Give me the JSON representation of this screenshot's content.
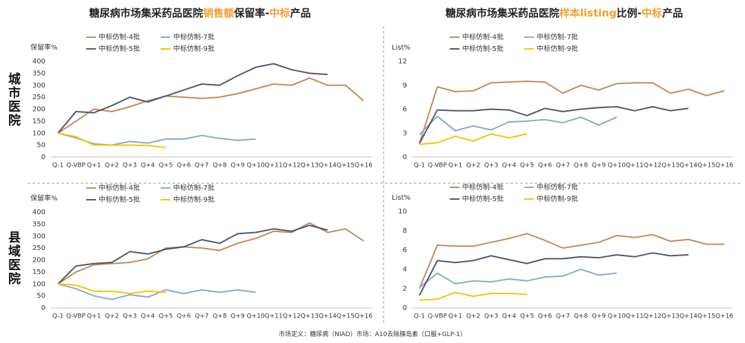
{
  "headers": [
    {
      "parts": [
        "糖尿病市场集采药品医院",
        "销售额",
        "保留率-",
        "中标",
        "产品"
      ]
    },
    {
      "parts": [
        "糖尿病市场集采药品医院",
        "样本listing",
        "比例-",
        "中标",
        "产品"
      ]
    }
  ],
  "row_labels": [
    "城市医院",
    "县域医院"
  ],
  "footnote": "市场定义：糖尿病（NIAD）市场：A10去除胰岛素（口服+GLP-1）",
  "chart_data": [
    {
      "type": "line",
      "y_label": "保留率%",
      "categories": [
        "Q-1",
        "Q-VBP",
        "Q+1",
        "Q+2",
        "Q+3",
        "Q+4",
        "Q+5",
        "Q+6",
        "Q+7",
        "Q+8",
        "Q+9",
        "Q+10",
        "Q+11",
        "Q+12",
        "Q+13",
        "Q+14",
        "Q+15",
        "Q+16"
      ],
      "ylim": [
        0,
        400
      ],
      "yticks": [
        0,
        50,
        100,
        150,
        200,
        250,
        300,
        350,
        400
      ],
      "grid": false,
      "series": [
        {
          "name": "中标仿制-4批",
          "color": "#c08a5b",
          "values": [
            100,
            150,
            200,
            190,
            210,
            235,
            255,
            250,
            245,
            250,
            265,
            285,
            305,
            300,
            330,
            300,
            300,
            235
          ]
        },
        {
          "name": "中标仿制-7批",
          "color": "#86a9cf",
          "values": [
            100,
            80,
            55,
            50,
            65,
            58,
            75,
            75,
            90,
            78,
            70,
            75,
            null,
            null,
            null,
            null,
            null,
            null
          ]
        },
        {
          "name": "中标仿制-5批",
          "color": "#4b5869",
          "values": [
            100,
            190,
            185,
            215,
            250,
            230,
            255,
            280,
            305,
            300,
            340,
            375,
            390,
            365,
            350,
            345,
            null,
            null
          ]
        },
        {
          "name": "中标仿制-9批",
          "color": "#f5c400",
          "values": [
            100,
            85,
            50,
            50,
            50,
            48,
            40,
            null,
            null,
            null,
            null,
            null,
            null,
            null,
            null,
            null,
            null,
            null
          ]
        }
      ]
    },
    {
      "type": "line",
      "y_label": "List%",
      "categories": [
        "Q-1",
        "Q-VBP",
        "Q+1",
        "Q+2",
        "Q+3",
        "Q+4",
        "Q+5",
        "Q+6",
        "Q+7",
        "Q+8",
        "Q+9",
        "Q+10",
        "Q+11",
        "Q+12",
        "Q+13",
        "Q+14",
        "Q+15",
        "Q+16"
      ],
      "ylim": [
        0,
        12
      ],
      "yticks": [
        0,
        3,
        6,
        9,
        12
      ],
      "grid": false,
      "series": [
        {
          "name": "中标仿制-4批",
          "color": "#c08a5b",
          "values": [
            1.7,
            8.8,
            8.2,
            8.3,
            9.3,
            9.4,
            9.5,
            9.4,
            8.0,
            9.0,
            8.4,
            9.2,
            9.3,
            9.3,
            8.0,
            8.5,
            7.7,
            8.3
          ]
        },
        {
          "name": "中标仿制-7批",
          "color": "#86a9cf",
          "values": [
            2.8,
            5.1,
            3.3,
            3.9,
            3.4,
            4.4,
            4.5,
            4.7,
            4.3,
            5.0,
            4.0,
            5.0,
            null,
            null,
            null,
            null,
            null,
            null
          ]
        },
        {
          "name": "中标仿制-5批",
          "color": "#4b5869",
          "values": [
            1.7,
            5.9,
            5.8,
            5.8,
            6.0,
            5.9,
            5.2,
            6.1,
            5.7,
            6.0,
            6.2,
            6.3,
            5.8,
            6.3,
            5.8,
            6.1,
            null,
            null
          ]
        },
        {
          "name": "中标仿制-9批",
          "color": "#f5c400",
          "values": [
            1.6,
            1.8,
            2.6,
            2.0,
            2.9,
            2.4,
            2.9,
            null,
            null,
            null,
            null,
            null,
            null,
            null,
            null,
            null,
            null,
            null
          ]
        }
      ]
    },
    {
      "type": "line",
      "y_label": "保留率%",
      "categories": [
        "Q-1",
        "Q-VBP",
        "Q+1",
        "Q+2",
        "Q+3",
        "Q+4",
        "Q+5",
        "Q+6",
        "Q+7",
        "Q+8",
        "Q+9",
        "Q+10",
        "Q+11",
        "Q+12",
        "Q+13",
        "Q+14",
        "Q+15",
        "Q+16"
      ],
      "ylim": [
        0,
        400
      ],
      "yticks": [
        0,
        50,
        100,
        150,
        200,
        250,
        300,
        350,
        400
      ],
      "grid": false,
      "series": [
        {
          "name": "中标仿制-4批",
          "color": "#c08a5b",
          "values": [
            100,
            150,
            180,
            185,
            190,
            205,
            250,
            255,
            250,
            240,
            270,
            290,
            320,
            315,
            355,
            315,
            330,
            280
          ]
        },
        {
          "name": "中标仿制-7批",
          "color": "#86a9cf",
          "values": [
            100,
            80,
            50,
            35,
            55,
            45,
            75,
            60,
            75,
            65,
            75,
            65,
            null,
            null,
            null,
            null,
            null,
            null
          ]
        },
        {
          "name": "中标仿制-5批",
          "color": "#4b5869",
          "values": [
            100,
            175,
            185,
            190,
            235,
            225,
            245,
            255,
            285,
            270,
            310,
            315,
            330,
            320,
            345,
            325,
            null,
            null
          ]
        },
        {
          "name": "中标仿制-9批",
          "color": "#f5c400",
          "values": [
            100,
            95,
            70,
            70,
            60,
            70,
            65,
            null,
            null,
            null,
            null,
            null,
            null,
            null,
            null,
            null,
            null,
            null
          ]
        }
      ]
    },
    {
      "type": "line",
      "y_label": "List%",
      "categories": [
        "Q-1",
        "Q-VBP",
        "Q+1",
        "Q+2",
        "Q+3",
        "Q+4",
        "Q+5",
        "Q+6",
        "Q+7",
        "Q+8",
        "Q+9",
        "Q+10",
        "Q+11",
        "Q+12",
        "Q+13",
        "Q+14",
        "Q+15",
        "Q+16"
      ],
      "ylim": [
        0,
        10
      ],
      "yticks": [
        0,
        2,
        4,
        6,
        8,
        10
      ],
      "grid": false,
      "series": [
        {
          "name": "中标仿制-4批",
          "color": "#c08a5b",
          "values": [
            2.0,
            6.5,
            6.4,
            6.4,
            6.8,
            7.2,
            7.7,
            7.0,
            6.2,
            6.5,
            6.8,
            7.5,
            7.3,
            7.6,
            6.9,
            7.1,
            6.6,
            6.6
          ]
        },
        {
          "name": "中标仿制-7批",
          "color": "#86a9cf",
          "values": [
            2.1,
            3.6,
            2.5,
            2.8,
            2.7,
            3.0,
            2.8,
            3.2,
            3.3,
            4.0,
            3.4,
            3.6,
            null,
            null,
            null,
            null,
            null,
            null
          ]
        },
        {
          "name": "中标仿制-5批",
          "color": "#4b5869",
          "values": [
            1.3,
            4.9,
            4.7,
            4.9,
            5.4,
            5.0,
            4.6,
            5.1,
            5.1,
            5.3,
            5.2,
            5.5,
            5.3,
            5.7,
            5.4,
            5.5,
            null,
            null
          ]
        },
        {
          "name": "中标仿制-9批",
          "color": "#f5c400",
          "values": [
            0.8,
            0.9,
            1.6,
            1.2,
            1.5,
            1.5,
            1.4,
            null,
            null,
            null,
            null,
            null,
            null,
            null,
            null,
            null,
            null,
            null
          ]
        }
      ]
    }
  ]
}
